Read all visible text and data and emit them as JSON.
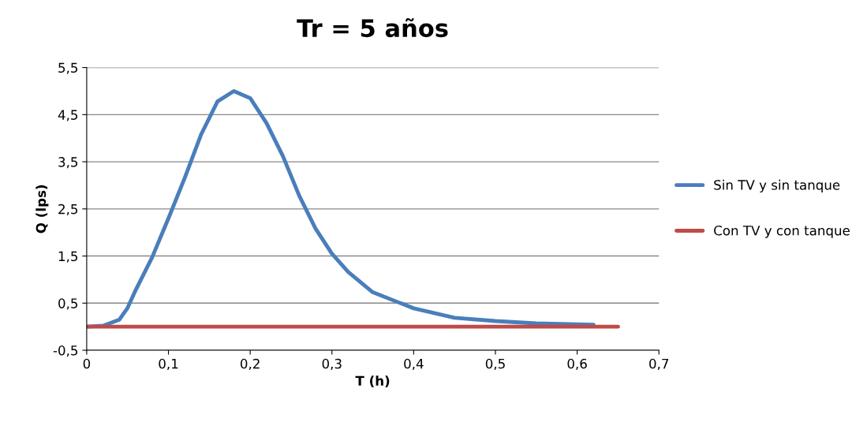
{
  "chart_data": {
    "type": "line",
    "title": "Tr = 5 años",
    "xlabel": "T (h)",
    "ylabel": "Q (lps)",
    "xlim": [
      0,
      0.7
    ],
    "xticks": [
      0,
      {
        "value": 0.1,
        "label": "0,1"
      },
      {
        "value": 0.2,
        "label": "0,2"
      },
      {
        "value": 0.3,
        "label": "0,3"
      },
      {
        "value": 0.4,
        "label": "0,4"
      },
      {
        "value": 0.5,
        "label": "0,5"
      },
      {
        "value": 0.6,
        "label": "0,6"
      },
      {
        "value": 0.7,
        "label": "0,7"
      }
    ],
    "ylim": [
      -0.5,
      5.5
    ],
    "yticks": [
      {
        "value": -0.5,
        "label": "-0,5"
      },
      {
        "value": 0.5,
        "label": "0,5"
      },
      {
        "value": 1.5,
        "label": "1,5"
      },
      {
        "value": 2.5,
        "label": "2,5"
      },
      {
        "value": 3.5,
        "label": "3,5"
      },
      {
        "value": 4.5,
        "label": "4,5"
      },
      {
        "value": 5.5,
        "label": "5,5"
      }
    ],
    "grid": "y",
    "legend": "right",
    "marker": "none",
    "line_style": "solid",
    "series": [
      {
        "name": "Sin TV y sin tanque",
        "color": "#4a7ebb",
        "x": [
          0,
          0.02,
          0.04,
          0.05,
          0.06,
          0.08,
          0.1,
          0.12,
          0.14,
          0.16,
          0.18,
          0.2,
          0.22,
          0.24,
          0.26,
          0.28,
          0.3,
          0.32,
          0.35,
          0.4,
          0.45,
          0.5,
          0.55,
          0.6,
          0.62
        ],
        "values": [
          0,
          0.02,
          0.15,
          0.4,
          0.78,
          1.47,
          2.3,
          3.16,
          4.08,
          4.78,
          5.0,
          4.85,
          4.32,
          3.62,
          2.78,
          2.08,
          1.55,
          1.16,
          0.73,
          0.39,
          0.19,
          0.12,
          0.07,
          0.05,
          0.04
        ]
      },
      {
        "name": "Con TV y con tanque",
        "color": "#be4b48",
        "x": [
          0,
          0.65
        ],
        "values": [
          0,
          0
        ]
      }
    ]
  }
}
